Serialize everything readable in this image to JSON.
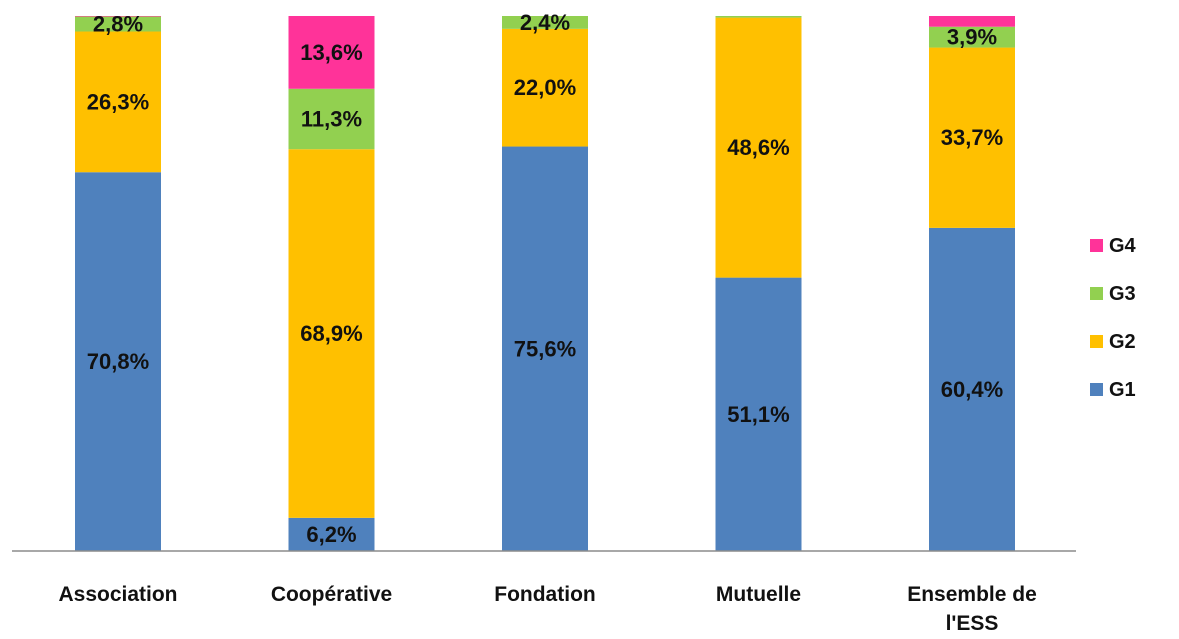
{
  "chart_data": {
    "type": "bar",
    "stacked": true,
    "categories": [
      [
        "Association"
      ],
      [
        "Coopérative"
      ],
      [
        "Fondation"
      ],
      [
        "Mutuelle"
      ],
      [
        "Ensemble de",
        "l'ESS"
      ]
    ],
    "series": [
      {
        "name": "G1",
        "color": "#4F81BD",
        "values": [
          70.8,
          6.2,
          75.6,
          51.1,
          60.4
        ],
        "labels": [
          "70,8%",
          "6,2%",
          "75,6%",
          "51,1%",
          "60,4%"
        ]
      },
      {
        "name": "G2",
        "color": "#FFC000",
        "values": [
          26.3,
          68.9,
          22.0,
          48.6,
          33.7
        ],
        "labels": [
          "26,3%",
          "68,9%",
          "22,0%",
          "48,6%",
          "33,7%"
        ]
      },
      {
        "name": "G3",
        "color": "#92D050",
        "values": [
          2.8,
          11.3,
          2.4,
          0.3,
          3.9
        ],
        "labels": [
          "2,8%",
          "11,3%",
          "2,4%",
          "",
          "3,9%"
        ]
      },
      {
        "name": "G4",
        "color": "#FF3399",
        "values": [
          0.1,
          13.6,
          0.0,
          0.0,
          2.0
        ],
        "labels": [
          "",
          "13,6%",
          "",
          "",
          ""
        ]
      }
    ],
    "ylim": [
      0,
      100
    ],
    "legend_position": "right",
    "legend_order": [
      "G4",
      "G3",
      "G2",
      "G1"
    ],
    "grid": false
  }
}
